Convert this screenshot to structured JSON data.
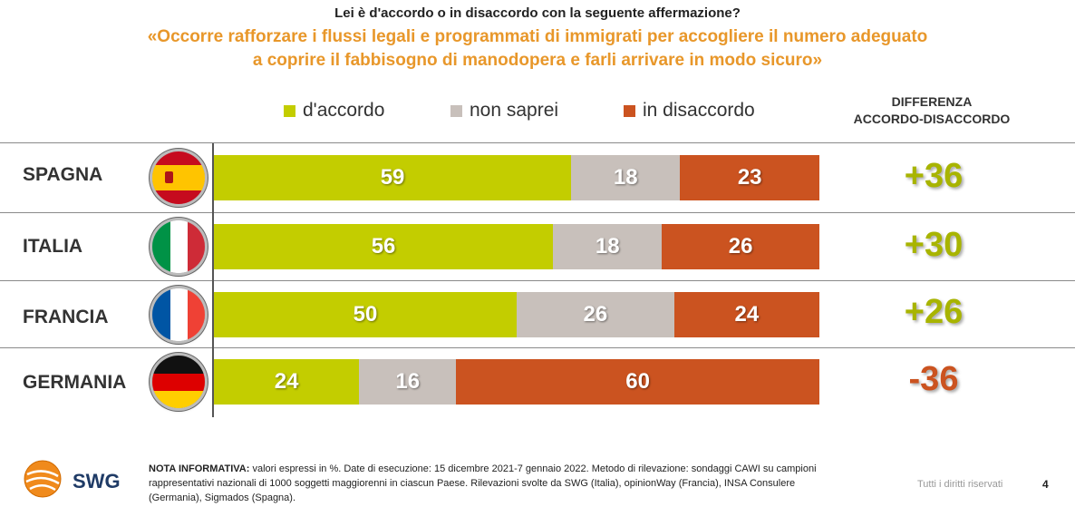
{
  "question": "Lei è d'accordo o in disaccordo con la seguente affermazione?",
  "statement": [
    "«Occorre rafforzare i flussi legali e programmati di immigrati per accogliere il numero adeguato",
    "a coprire il fabbisogno di manodopera e farli arrivare in modo sicuro»"
  ],
  "diff_header": [
    "DIFFERENZA",
    "ACCORDO-DISACCORDO"
  ],
  "colors": {
    "accordo": "#C3CD00",
    "non_saprei": "#C8C0BB",
    "disaccordo": "#CB5320",
    "diff_pos": "#A8B400",
    "diff_neg": "#CB5320"
  },
  "chart_data": {
    "type": "bar",
    "orientation": "horizontal",
    "stacked": true,
    "categories": [
      "SPAGNA",
      "ITALIA",
      "FRANCIA",
      "GERMANIA"
    ],
    "series": [
      {
        "name": "d'accordo",
        "values": [
          59,
          56,
          50,
          24
        ]
      },
      {
        "name": "non saprei",
        "values": [
          18,
          18,
          26,
          16
        ]
      },
      {
        "name": "in disaccordo",
        "values": [
          23,
          26,
          24,
          60
        ]
      }
    ],
    "differences": [
      "+36",
      "+30",
      "+26",
      "-36"
    ],
    "legend_position": "top",
    "grid": false
  },
  "footer": {
    "logo": "SWG",
    "note_label": "NOTA INFORMATIVA:",
    "note_line1": " valori espressi in %. Date di esecuzione: 15 dicembre 2021-7 gennaio 2022. Metodo di rilevazione: sondaggi CAWI su campioni",
    "note_line2": "rappresentativi nazionali di 1000 soggetti maggiorenni in ciascun Paese. Rilevazioni svolte da SWG (Italia), opinionWay (Francia), INSA Consulere",
    "note_line3": "(Germania), Sigmados (Spagna).",
    "rights": "Tutti i diritti riservati",
    "page": "4"
  }
}
